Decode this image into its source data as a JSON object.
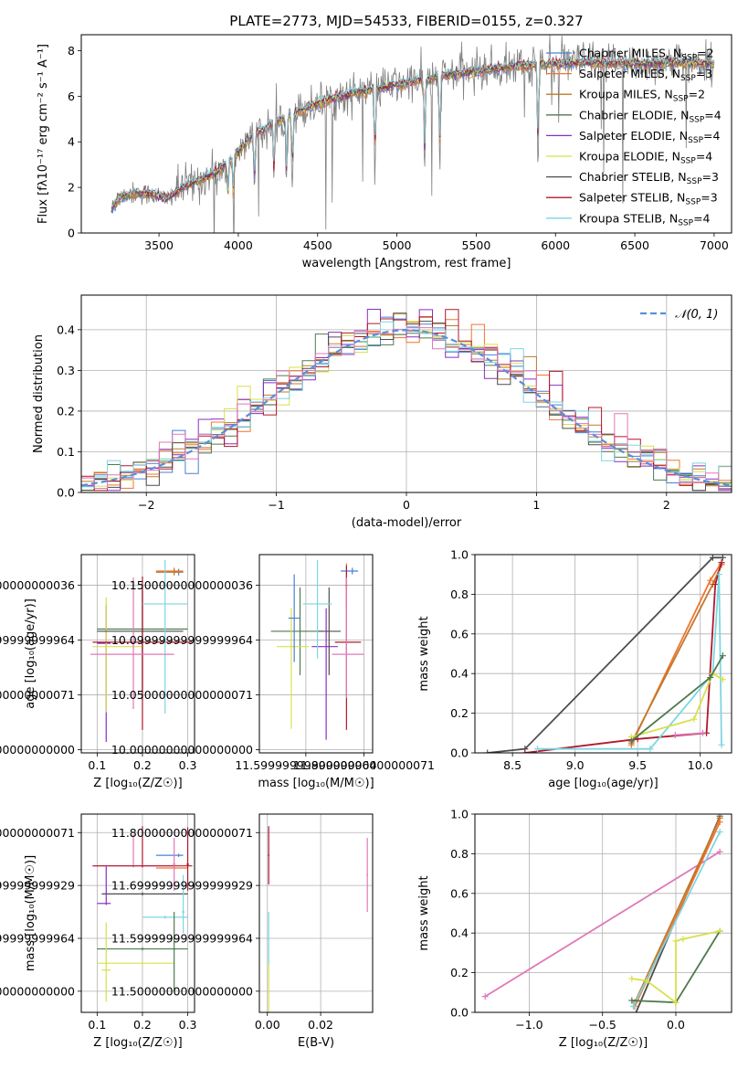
{
  "figure_title": "PLATE=2773, MJD=54533, FIBERID=0155, z=0.327",
  "colors": {
    "chabrier_miles": "#4a7fd6",
    "salpeter_miles": "#f0742f",
    "kroupa_miles": "#c07a2a",
    "chabrier_elodie": "#4f7a4f",
    "salpeter_elodie": "#8a2fc0",
    "kroupa_elodie": "#d8e04a",
    "chabrier_stelib": "#4d4d4d",
    "salpeter_stelib": "#b0182c",
    "kroupa_stelib": "#7ed6e0",
    "pink": "#e078b8",
    "gray_spectrum": "#808080",
    "normal_curve": "#5b8ed8"
  },
  "chart_data": [
    {
      "id": "spectrum",
      "type": "line",
      "title": "PLATE=2773, MJD=54533, FIBERID=0155, z=0.327",
      "xlabel": "wavelength [Angstrom, rest frame]",
      "ylabel": "Flux [fλ10⁻¹⁷ erg cm⁻² s⁻¹ A⁻¹]",
      "xlim": [
        3010,
        7110
      ],
      "ylim": [
        0,
        8.7
      ],
      "xticks": [
        3500,
        4000,
        4500,
        5000,
        5500,
        6000,
        6500,
        7000
      ],
      "yticks": [
        0,
        2,
        4,
        6,
        8
      ],
      "grid": false,
      "legend_position": "top-right",
      "legend": [
        {
          "label": "Chabrier MILES, N",
          "sub": "SSP",
          "rest": "=2",
          "color": "#4a7fd6"
        },
        {
          "label": "Salpeter MILES, N",
          "sub": "SSP",
          "rest": "=3",
          "color": "#f0742f"
        },
        {
          "label": "Kroupa MILES, N",
          "sub": "SSP",
          "rest": "=2",
          "color": "#c07a2a"
        },
        {
          "label": "Chabrier ELODIE, N",
          "sub": "SSP",
          "rest": "=4",
          "color": "#4f7a4f"
        },
        {
          "label": "Salpeter ELODIE, N",
          "sub": "SSP",
          "rest": "=4",
          "color": "#8a2fc0"
        },
        {
          "label": "Kroupa ELODIE, N",
          "sub": "SSP",
          "rest": "=4",
          "color": "#d8e04a"
        },
        {
          "label": "Chabrier STELIB, N",
          "sub": "SSP",
          "rest": "=3",
          "color": "#4d4d4d"
        },
        {
          "label": "Salpeter STELIB, N",
          "sub": "SSP",
          "rest": "=3",
          "color": "#b0182c"
        },
        {
          "label": "Kroupa STELIB, N",
          "sub": "SSP",
          "rest": "=4",
          "color": "#7ed6e0"
        }
      ],
      "continuum": {
        "x": [
          3200,
          3250,
          3350,
          3450,
          3550,
          3650,
          3750,
          3850,
          3950,
          4100,
          4300,
          4500,
          4700,
          5000,
          5300,
          5600,
          5900,
          6200,
          6500,
          6800,
          7000
        ],
        "y": [
          1.0,
          1.6,
          1.75,
          1.7,
          1.5,
          2.0,
          2.3,
          2.6,
          3.2,
          4.3,
          5.1,
          5.7,
          6.1,
          6.5,
          6.9,
          7.2,
          7.4,
          7.5,
          7.4,
          7.5,
          7.4
        ]
      },
      "absorption_lines": [
        3934,
        3969,
        4102,
        4226,
        4304,
        4341,
        4861,
        5175,
        5270,
        5890
      ]
    },
    {
      "id": "residuals",
      "type": "histogram",
      "xlabel": "(data-model)/error",
      "ylabel": "Normed distribution",
      "xlim": [
        -2.5,
        2.5
      ],
      "ylim": [
        0,
        0.485
      ],
      "xticks": [
        -2,
        -1,
        0,
        1,
        2
      ],
      "yticks": [
        0.0,
        0.1,
        0.2,
        0.3,
        0.4
      ],
      "grid": true,
      "legend_position": "top-right",
      "legend": [
        {
          "label": "𝒩(0, 1)",
          "color": "#5b8ed8",
          "style": "dashed"
        }
      ],
      "bins": 50,
      "bin_width": 0.1
    },
    {
      "id": "age_vs_Z",
      "type": "scatter",
      "xlabel": "Z [log₁₀(Z/Z☉)]",
      "ylabel": "age  [log₁₀(age/yr)]",
      "xlim": [
        0.065,
        0.315
      ],
      "ylim": [
        9.997,
        10.178
      ],
      "xticks": [
        0.1,
        0.2,
        0.3
      ],
      "yticks": [
        10.0,
        10.05,
        10.1,
        10.15
      ],
      "grid": true,
      "points": [
        {
          "c": "#4a7fd6",
          "x": 0.28,
          "xerr": [
            0.05,
            0.01
          ],
          "y": 10.162,
          "yerr": [
            0.003,
            0.003
          ]
        },
        {
          "c": "#f0742f",
          "x": 0.27,
          "xerr": [
            0.04,
            0.02
          ],
          "y": 10.163,
          "yerr": [
            0.003,
            0.003
          ]
        },
        {
          "c": "#c07a2a",
          "x": 0.27,
          "xerr": [
            0.04,
            0.02
          ],
          "y": 10.162,
          "yerr": [
            0.003,
            0.003
          ]
        },
        {
          "c": "#4f7a4f",
          "x": 0.2,
          "xerr": [
            0.1,
            0.1
          ],
          "y": 10.11,
          "yerr": [
            0.065,
            0.035
          ]
        },
        {
          "c": "#8a2fc0",
          "x": 0.12,
          "xerr": [
            0.02,
            0.01
          ],
          "y": 10.097,
          "yerr": [
            0.09,
            0.035
          ]
        },
        {
          "c": "#d8e04a",
          "x": 0.12,
          "xerr": [
            0.03,
            0.08
          ],
          "y": 10.094,
          "yerr": [
            0.06,
            0.045
          ]
        },
        {
          "c": "#4d4d4d",
          "x": 0.2,
          "xerr": [
            0.1,
            0.09
          ],
          "y": 10.108,
          "yerr": [
            0.06,
            0.04
          ]
        },
        {
          "c": "#b0182c",
          "x": 0.2,
          "xerr": [
            0.11,
            0.11
          ],
          "y": 10.098,
          "yerr": [
            0.08,
            0.06
          ]
        },
        {
          "c": "#7ed6e0",
          "x": 0.25,
          "xerr": [
            0.05,
            0.05
          ],
          "y": 10.133,
          "yerr": [
            0.1,
            0.04
          ]
        },
        {
          "c": "#e078b8",
          "x": 0.18,
          "xerr": [
            0.095,
            0.09
          ],
          "y": 10.087,
          "yerr": [
            0.05,
            0.07
          ]
        }
      ]
    },
    {
      "id": "age_vs_mass",
      "type": "scatter",
      "xlabel": "mass [log₁₀(M/M☉)]",
      "ylabel": "",
      "xlim": [
        11.44,
        11.83
      ],
      "ylim": [
        9.997,
        10.178
      ],
      "xticks": [
        11.6,
        11.8
      ],
      "yticks": [
        10.0,
        10.05,
        10.1,
        10.15
      ],
      "grid": true,
      "points": [
        {
          "c": "#4a7fd6",
          "x": 11.76,
          "xerr": [
            0.04,
            0.02
          ],
          "y": 10.163,
          "yerr": [
            0.003,
            0.003
          ]
        },
        {
          "c": "#f0742f",
          "x": 11.74,
          "xerr": [
            0.005,
            0.005
          ],
          "y": 10.15,
          "yerr": [
            0.02,
            0.02
          ]
        },
        {
          "c": "#4f7a4f",
          "x": 11.58,
          "xerr": [
            0.1,
            0.08
          ],
          "y": 10.108,
          "yerr": [
            0.04,
            0.04
          ]
        },
        {
          "c": "#8a2fc0",
          "x": 11.67,
          "xerr": [
            0.05,
            0.04
          ],
          "y": 10.094,
          "yerr": [
            0.085,
            0.035
          ]
        },
        {
          "c": "#d8e04a",
          "x": 11.55,
          "xerr": [
            0.05,
            0.06
          ],
          "y": 10.094,
          "yerr": [
            0.075,
            0.035
          ]
        },
        {
          "c": "#4d4d4d",
          "x": 11.68,
          "xerr": [
            0.04,
            0.04
          ],
          "y": 10.108,
          "yerr": [
            0.04,
            0.04
          ]
        },
        {
          "c": "#b0182c",
          "x": 11.74,
          "xerr": [
            0.04,
            0.05
          ],
          "y": 10.098,
          "yerr": [
            0.08,
            0.07
          ]
        },
        {
          "c": "#7ed6e0",
          "x": 11.64,
          "xerr": [
            0.05,
            0.05
          ],
          "y": 10.133,
          "yerr": [
            0.05,
            0.04
          ]
        },
        {
          "c": "#e078b8",
          "x": 11.74,
          "xerr": [
            0.05,
            0.06
          ],
          "y": 10.087,
          "yerr": [
            0.04,
            0.07
          ]
        },
        {
          "c": "#4a7fd6",
          "x": 11.56,
          "xerr": [
            0.02,
            0.02
          ],
          "y": 10.12,
          "yerr": [
            0.04,
            0.04
          ]
        }
      ]
    },
    {
      "id": "cum_mass_age",
      "type": "line",
      "xlabel": "age  [log₁₀(age/yr)]",
      "ylabel": "mass weight",
      "xlim": [
        8.2,
        10.25
      ],
      "ylim": [
        0,
        1.0
      ],
      "xticks": [
        8.5,
        9.0,
        9.5,
        10.0
      ],
      "yticks": [
        0.0,
        0.2,
        0.4,
        0.6,
        0.8,
        1.0
      ],
      "grid": true,
      "series": [
        {
          "c": "#4d4d4d",
          "x": [
            8.3,
            8.6,
            10.1,
            10.18
          ],
          "y": [
            0.0,
            0.02,
            0.985,
            0.985
          ]
        },
        {
          "c": "#f0742f",
          "x": [
            9.45,
            10.08,
            10.17
          ],
          "y": [
            0.04,
            0.87,
            0.96
          ]
        },
        {
          "c": "#c07a2a",
          "x": [
            9.45,
            10.1,
            10.17
          ],
          "y": [
            0.05,
            0.85,
            0.95
          ]
        },
        {
          "c": "#b0182c",
          "x": [
            8.6,
            9.5,
            10.05,
            10.12,
            10.17
          ],
          "y": [
            0.0,
            0.07,
            0.1,
            0.85,
            0.96
          ]
        },
        {
          "c": "#7ed6e0",
          "x": [
            8.7,
            9.6,
            10.1,
            10.15,
            10.17
          ],
          "y": [
            0.02,
            0.02,
            0.4,
            0.9,
            0.04
          ]
        },
        {
          "c": "#d8e04a",
          "x": [
            9.45,
            9.95,
            10.1,
            10.18
          ],
          "y": [
            0.08,
            0.17,
            0.4,
            0.37
          ]
        },
        {
          "c": "#4f7a4f",
          "x": [
            9.45,
            10.08,
            10.18
          ],
          "y": [
            0.06,
            0.38,
            0.49
          ]
        },
        {
          "c": "#e078b8",
          "x": [
            9.8,
            10.02
          ],
          "y": [
            0.09,
            0.1
          ]
        }
      ]
    },
    {
      "id": "mass_vs_Z",
      "type": "scatter",
      "xlabel": "Z [log₁₀(Z/Z☉)]",
      "ylabel": "mass [log₁₀(M/M☉)]",
      "xlim": [
        0.065,
        0.315
      ],
      "ylim": [
        11.46,
        11.835
      ],
      "xticks": [
        0.1,
        0.2,
        0.3
      ],
      "yticks": [
        11.5,
        11.6,
        11.7,
        11.8
      ],
      "grid": true,
      "points": [
        {
          "c": "#4a7fd6",
          "x": 0.28,
          "xerr": [
            0.05,
            0.01
          ],
          "y": 11.757,
          "yerr": [
            0.003,
            0.003
          ]
        },
        {
          "c": "#f0742f",
          "x": 0.27,
          "xerr": [
            0.04,
            0.03
          ],
          "y": 11.733,
          "yerr": [
            0.003,
            0.003
          ]
        },
        {
          "c": "#e078b8",
          "x": 0.18,
          "xerr": [
            0.09,
            0.09
          ],
          "y": 11.737,
          "yerr": [
            0.003,
            0.06
          ]
        },
        {
          "c": "#b0182c",
          "x": 0.2,
          "xerr": [
            0.11,
            0.11
          ],
          "y": 11.737,
          "yerr": [
            0.003,
            0.075
          ]
        },
        {
          "c": "#4d4d4d",
          "x": 0.2,
          "xerr": [
            0.09,
            0.1
          ],
          "y": 11.684,
          "yerr": [
            0.003,
            0.003
          ]
        },
        {
          "c": "#8a2fc0",
          "x": 0.12,
          "xerr": [
            0.02,
            0.01
          ],
          "y": 11.666,
          "yerr": [
            0.003,
            0.07
          ]
        },
        {
          "c": "#7ed6e0",
          "x": 0.25,
          "xerr": [
            0.05,
            0.05
          ],
          "y": 11.64,
          "yerr": [
            0.003,
            0.003
          ]
        },
        {
          "c": "#4f7a4f",
          "x": 0.2,
          "xerr": [
            0.1,
            0.1
          ],
          "y": 11.58,
          "yerr": [
            0.003,
            0.003
          ]
        },
        {
          "c": "#d8e04a",
          "x": 0.2,
          "xerr": [
            0.1,
            0.07
          ],
          "y": 11.553,
          "yerr": [
            0.003,
            0.003
          ]
        },
        {
          "c": "#d8e04a",
          "x": 0.12,
          "xerr": [
            0.01,
            0.01
          ],
          "y": 11.54,
          "yerr": [
            0.06,
            0.09
          ]
        },
        {
          "c": "#4f7a4f",
          "x": 0.27,
          "xerr": [
            0.003,
            0.003
          ],
          "y": 11.58,
          "yerr": [
            0.08,
            0.07
          ]
        },
        {
          "c": "#7ed6e0",
          "x": 0.29,
          "xerr": [
            0.003,
            0.003
          ],
          "y": 11.65,
          "yerr": [
            0.04,
            0.07
          ]
        },
        {
          "c": "#e078b8",
          "x": 0.27,
          "xerr": [
            0.003,
            0.003
          ],
          "y": 11.74,
          "yerr": [
            0.05,
            0.05
          ]
        },
        {
          "c": "#b0182c",
          "x": 0.3,
          "xerr": [
            0.003,
            0.003
          ],
          "y": 11.74,
          "yerr": [
            0.05,
            0.07
          ]
        }
      ]
    },
    {
      "id": "mass_vs_EBV",
      "type": "scatter",
      "xlabel": "E(B-V)",
      "ylabel": "",
      "xlim": [
        -0.003,
        0.0395
      ],
      "ylim": [
        11.46,
        11.835
      ],
      "xticks": [
        0.0,
        0.02
      ],
      "yticks": [
        11.5,
        11.6,
        11.7,
        11.8
      ],
      "grid": true,
      "points": [
        {
          "c": "#b0182c",
          "x": 0.0005,
          "xerr": [
            0.0003,
            0.0003
          ],
          "y": 11.757,
          "yerr": [
            0.055,
            0.055
          ]
        },
        {
          "c": "#7ed6e0",
          "x": 0.0005,
          "xerr": [
            0.0003,
            0.0003
          ],
          "y": 11.6,
          "yerr": [
            0.05,
            0.05
          ]
        },
        {
          "c": "#d8e04a",
          "x": 0.0005,
          "xerr": [
            0.0003,
            0.0003
          ],
          "y": 11.5,
          "yerr": [
            0.05,
            0.05
          ]
        },
        {
          "c": "#e078b8",
          "x": 0.0375,
          "xerr": [
            0.0003,
            0.0003
          ],
          "y": 11.72,
          "yerr": [
            0.07,
            0.07
          ]
        }
      ]
    },
    {
      "id": "cum_mass_Z",
      "type": "line",
      "xlabel": "Z [log₁₀(Z/Z☉)]",
      "ylabel": "mass weight",
      "xlim": [
        -1.37,
        0.38
      ],
      "ylim": [
        0,
        1.0
      ],
      "xticks": [
        -1.0,
        -0.5,
        0.0
      ],
      "yticks": [
        0.0,
        0.2,
        0.4,
        0.6,
        0.8,
        1.0
      ],
      "grid": true,
      "series": [
        {
          "c": "#e078b8",
          "x": [
            -1.3,
            0.3
          ],
          "y": [
            0.08,
            0.81
          ]
        },
        {
          "c": "#4d4d4d",
          "x": [
            -0.3,
            0.3
          ],
          "y": [
            -0.05,
            0.99
          ]
        },
        {
          "c": "#c07a2a",
          "x": [
            -0.28,
            0.3
          ],
          "y": [
            0.05,
            0.98
          ]
        },
        {
          "c": "#f0742f",
          "x": [
            -0.28,
            0.3
          ],
          "y": [
            0.03,
            0.96
          ]
        },
        {
          "c": "#7ed6e0",
          "x": [
            -0.29,
            0.3
          ],
          "y": [
            0.03,
            0.91
          ]
        },
        {
          "c": "#4f7a4f",
          "x": [
            -0.3,
            0.0,
            0.3
          ],
          "y": [
            0.06,
            0.05,
            0.41
          ]
        },
        {
          "c": "#d8e04a",
          "x": [
            -0.3,
            -0.2,
            0.0,
            0.0,
            0.05,
            0.3
          ],
          "y": [
            0.17,
            0.16,
            0.05,
            0.36,
            0.37,
            0.41
          ]
        }
      ]
    }
  ]
}
